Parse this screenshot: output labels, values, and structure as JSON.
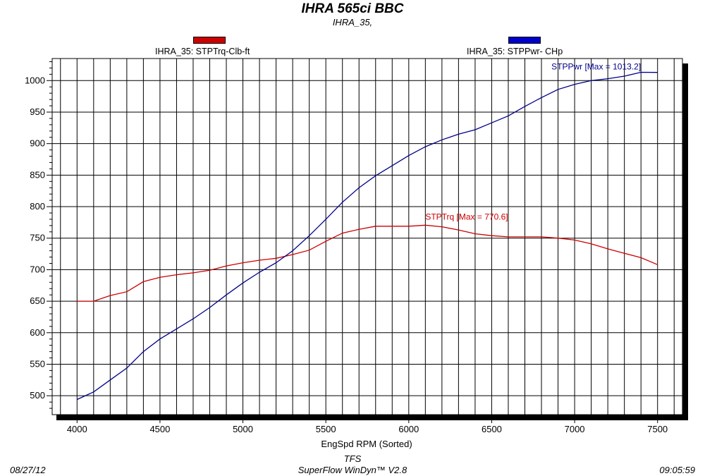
{
  "chart_data": {
    "type": "line",
    "title": "IHRA  565ci  BBC",
    "subtitle": "IHRA_35,",
    "xlabel": "EngSpd  RPM    (Sorted)",
    "ylabel": "",
    "xlim": [
      3850,
      7650
    ],
    "ylim": [
      470,
      1035
    ],
    "x_ticks": [
      4000,
      4500,
      5000,
      5500,
      6000,
      6500,
      7000,
      7500
    ],
    "y_ticks": [
      500,
      550,
      600,
      650,
      700,
      750,
      800,
      850,
      900,
      950,
      1000
    ],
    "grid": true,
    "legend_position": "top",
    "series": [
      {
        "name": "IHRA_35: STPTrq-Clb-ft",
        "color": "#cc0000",
        "annotation": "STPTrq [Max = 770.6]",
        "x": [
          4000,
          4100,
          4200,
          4300,
          4400,
          4500,
          4600,
          4700,
          4800,
          4900,
          5000,
          5100,
          5200,
          5300,
          5400,
          5500,
          5600,
          5700,
          5800,
          5900,
          6000,
          6100,
          6200,
          6300,
          6400,
          6500,
          6600,
          6700,
          6800,
          6900,
          7000,
          7100,
          7200,
          7300,
          7400,
          7500
        ],
        "y": [
          650,
          650,
          659,
          665,
          681,
          688,
          692,
          695,
          699,
          706,
          711,
          715,
          718,
          724,
          731,
          745,
          758,
          764,
          769,
          769,
          769,
          770.6,
          768,
          763,
          757,
          754,
          752,
          752,
          752,
          750,
          747,
          741,
          733,
          726,
          719,
          708
        ]
      },
      {
        "name": "IHRA_35: STPPwr- CHp",
        "color": "#00008b",
        "annotation": "STPPwr [Max = 1013.2]",
        "x": [
          4000,
          4100,
          4200,
          4300,
          4400,
          4500,
          4600,
          4700,
          4800,
          4900,
          5000,
          5100,
          5200,
          5300,
          5400,
          5500,
          5600,
          5700,
          5800,
          5900,
          6000,
          6100,
          6200,
          6300,
          6400,
          6500,
          6600,
          6700,
          6800,
          6900,
          7000,
          7100,
          7200,
          7300,
          7400,
          7500
        ],
        "y": [
          494,
          506,
          525,
          544,
          570,
          590,
          606,
          622,
          640,
          660,
          679,
          696,
          711,
          730,
          754,
          780,
          807,
          830,
          849,
          865,
          881,
          895,
          906,
          915,
          922,
          933,
          944,
          959,
          973,
          986,
          994,
          1000,
          1003,
          1007,
          1013.2,
          1013
        ]
      }
    ]
  },
  "footer": {
    "date": "08/27/12",
    "company": "TFS",
    "software": "SuperFlow WinDyn™ V2.8",
    "time": "09:05:59"
  }
}
